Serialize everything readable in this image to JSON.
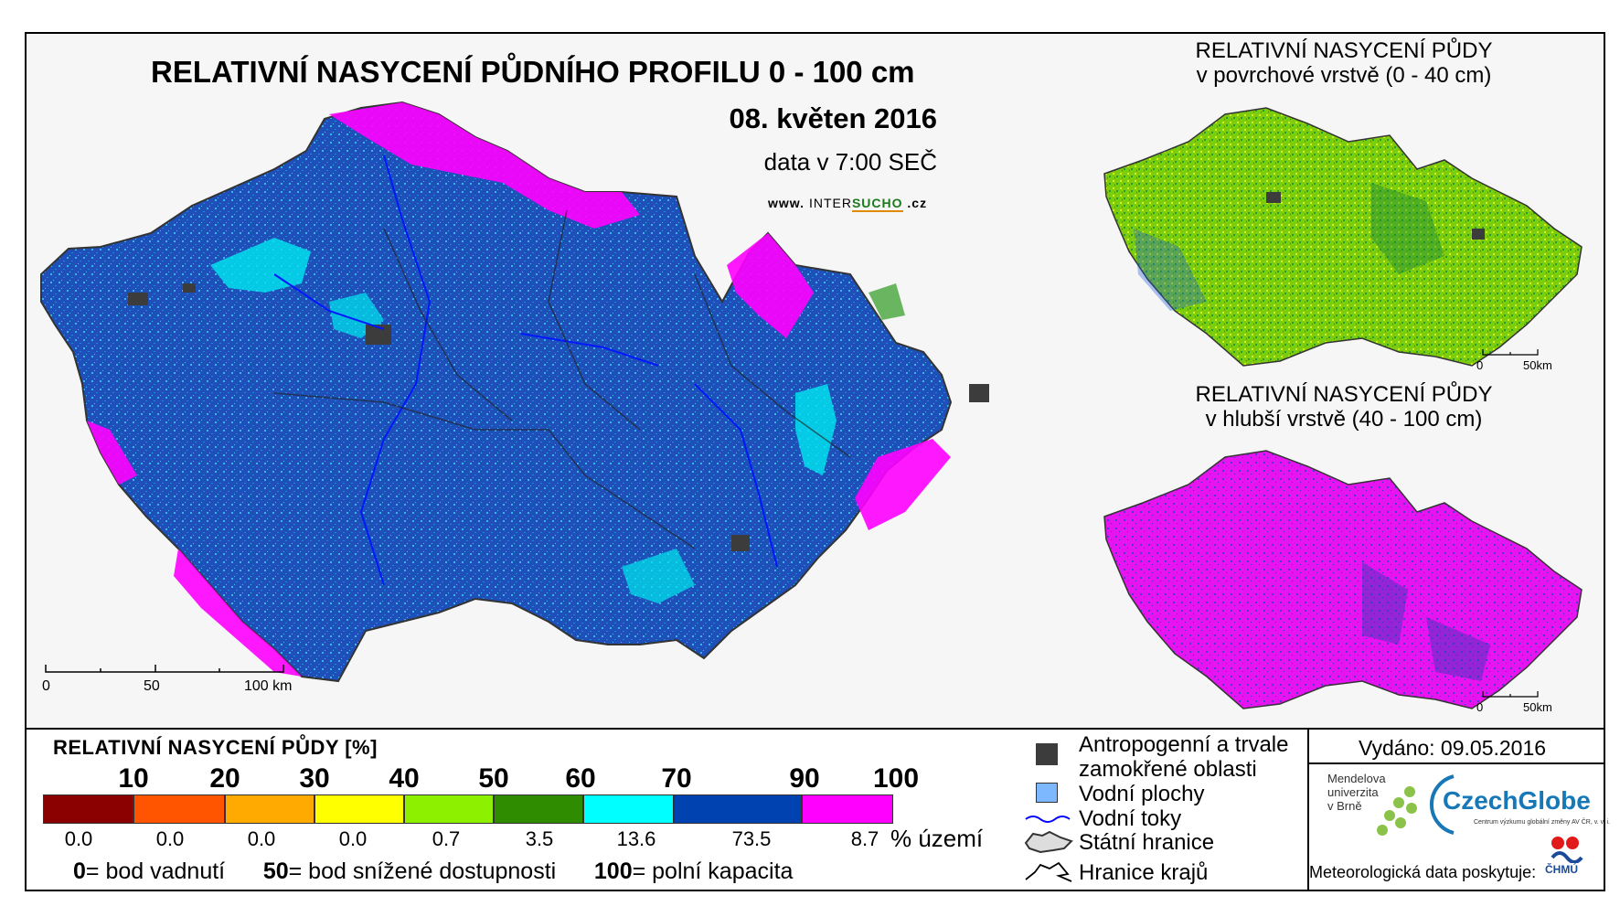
{
  "title": "RELATIVNÍ NASYCENÍ PŮDNÍHO PROFILU 0 - 100 cm",
  "date": "08. květen 2016",
  "time": "data v 7:00 SEČ",
  "url": {
    "prefix": "www.",
    "brand_a": "INTER",
    "brand_b": "SUCHO",
    "suffix": ".cz"
  },
  "main_scale": {
    "s0": "0",
    "s1": "50",
    "s2": "100 km"
  },
  "map_top": {
    "line1": "RELATIVNÍ NASYCENÍ PŮDY",
    "line2": "v povrchové vrstvě (0 - 40 cm)",
    "scale0": "0",
    "scale1": "50km"
  },
  "map_bottom": {
    "line1": "RELATIVNÍ NASYCENÍ PŮDY",
    "line2": "v hlubší vrstvě (40 - 100 cm)",
    "scale0": "0",
    "scale1": "50km"
  },
  "legend": {
    "title": "RELATIVNÍ NASYCENÍ PŮDY [%]",
    "ticks": [
      "10",
      "20",
      "30",
      "40",
      "50",
      "60",
      "70",
      "90",
      "100"
    ],
    "colors": [
      "#8b0000",
      "#ff5500",
      "#ffaa00",
      "#ffff00",
      "#8cf000",
      "#2f8b00",
      "#00ffff",
      "#0043b0",
      "#ff00ff"
    ],
    "percentages": [
      "0.0",
      "0.0",
      "0.0",
      "0.0",
      "0.7",
      "3.5",
      "13.6",
      "73.5",
      "8.7"
    ],
    "pct_unit": "% území",
    "def1_num": "0",
    "def1_txt": "= bod vadnutí",
    "def2_num": "50",
    "def2_txt": "= bod snížené dostupnosti",
    "def3_num": "100",
    "def3_txt": "= polní kapacita"
  },
  "symbols": {
    "anthropogenic_1": "Antropogenní a trvale",
    "anthropogenic_2": "zamokřené oblasti",
    "water_areas": "Vodní plochy",
    "water_streams": "Vodní toky",
    "state_border": "Státní hranice",
    "region_border": "Hranice krajů",
    "anthropogenic_color": "#3c3c3c",
    "water_area_color": "#7db8ff",
    "stream_color": "#0000ff"
  },
  "issued": "Vydáno: 09.05.2016",
  "mendel": {
    "l1": "Mendelova",
    "l2": "univerzita",
    "l3": "v Brně"
  },
  "czechglobe": {
    "name": "CzechGlobe",
    "sub": "Centrum výzkumu globální změny AV ČR, v. v. i."
  },
  "data_provider": "Meteorologická data poskytuje:",
  "chmu": "ČHMÚ"
}
